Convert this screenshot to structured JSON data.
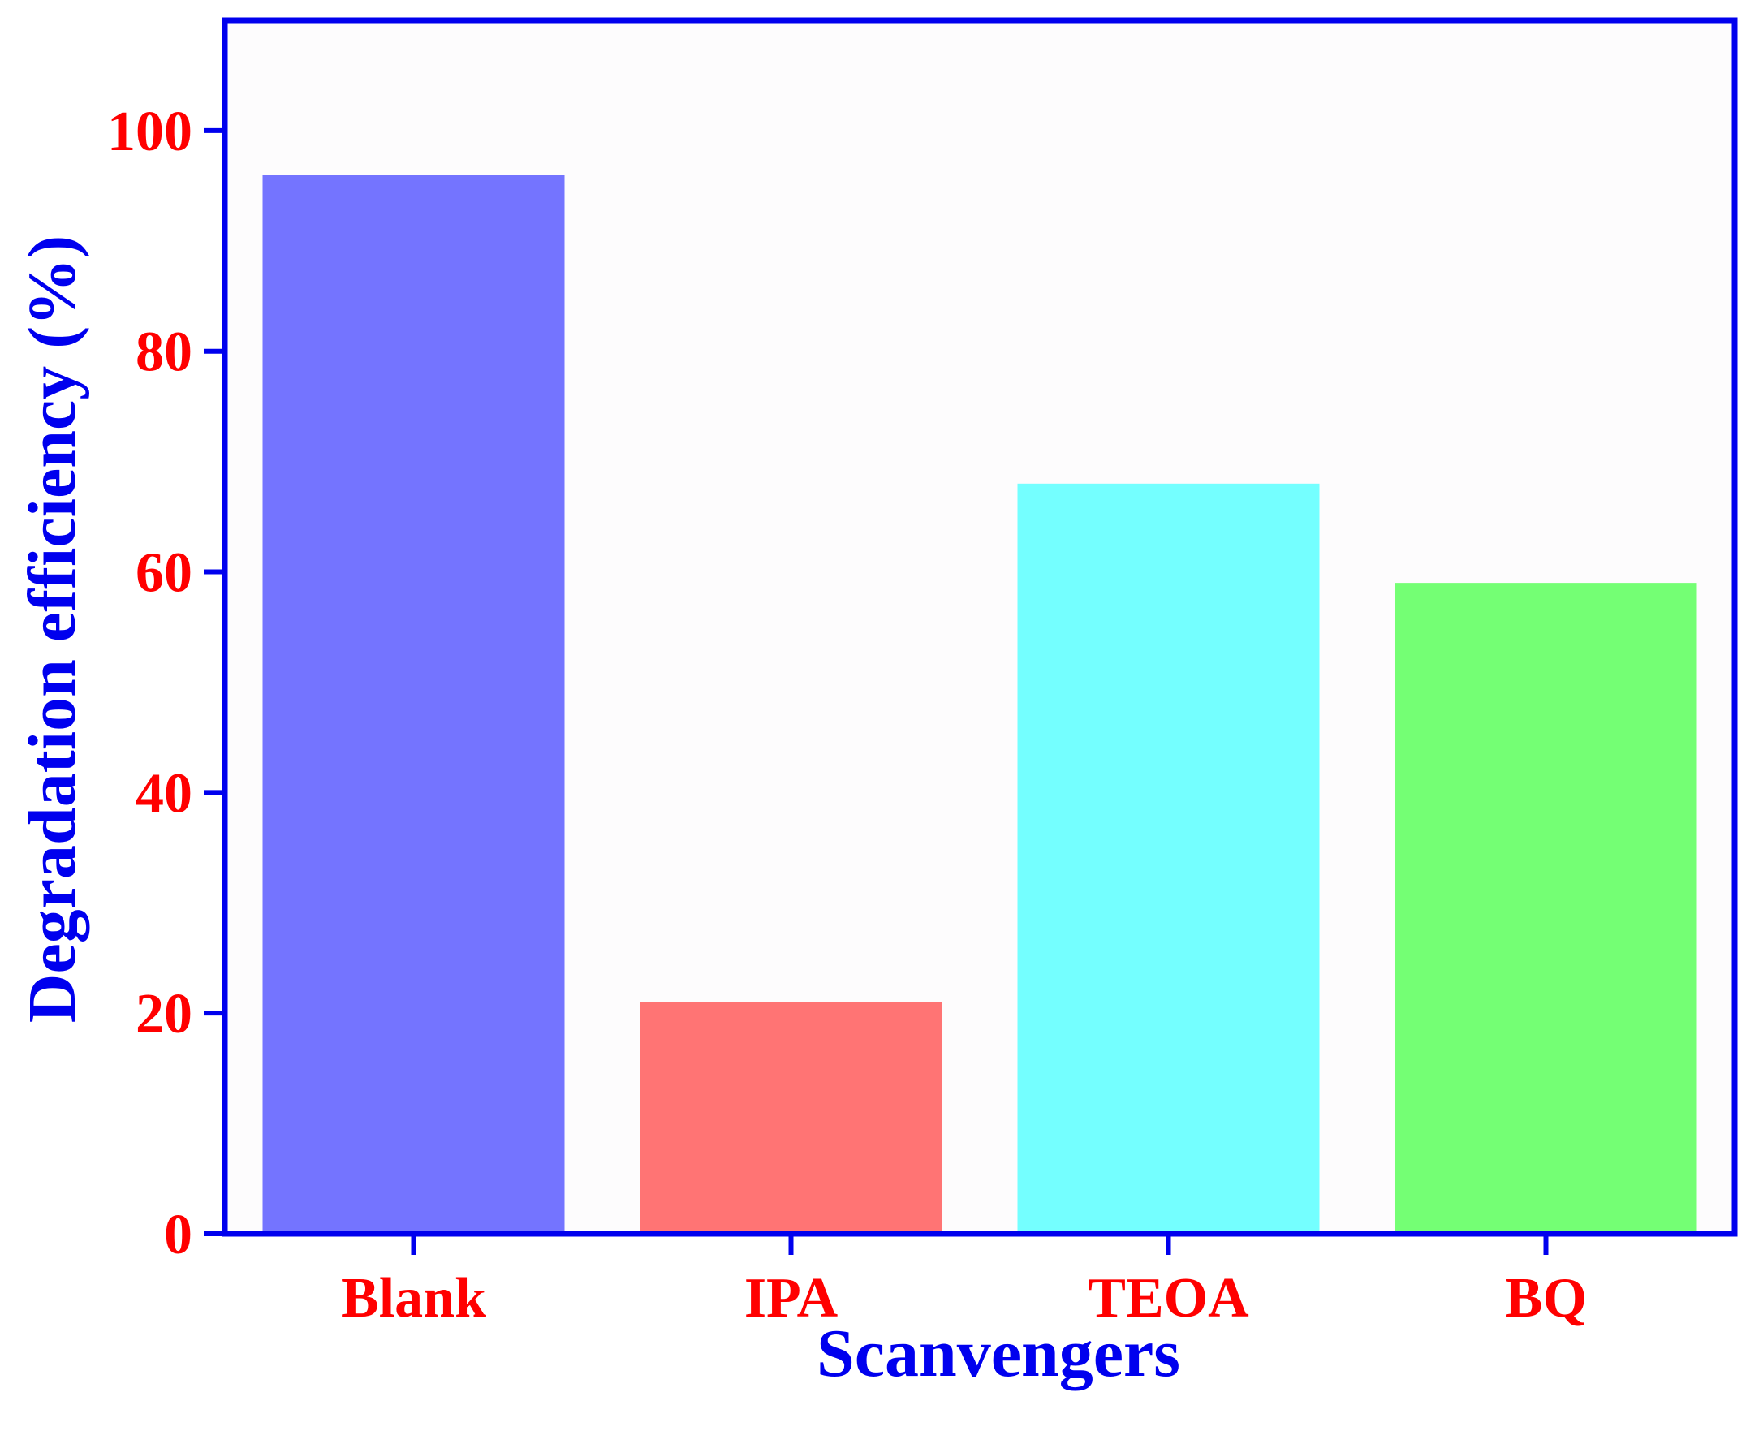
{
  "chart_data": {
    "type": "bar",
    "title": "",
    "xlabel": "Scanvengers",
    "ylabel": "Degradation efficiency (%)",
    "categories": [
      "Blank",
      "IPA",
      "TEOA",
      "BQ"
    ],
    "values": [
      96,
      21,
      68,
      59
    ],
    "bar_colors": [
      "#7474FF",
      "#FF7474",
      "#74FFFF",
      "#74FF74"
    ],
    "ylim": [
      0,
      110
    ],
    "yticks": [
      0,
      20,
      40,
      60,
      80,
      100
    ],
    "grid": false,
    "legend": "none",
    "colors": {
      "frame": "#0000EE",
      "tick_labels": "#FF0000",
      "axis_titles": "#0000EE",
      "plot_background": "#FDFCFD"
    }
  }
}
